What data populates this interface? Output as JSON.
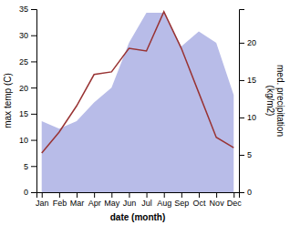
{
  "chart_data": {
    "type": "line",
    "categories": [
      "Jan",
      "Feb",
      "Mar",
      "Apr",
      "May",
      "Jun",
      "Jul",
      "Aug",
      "Sep",
      "Oct",
      "Nov",
      "Dec"
    ],
    "series": [
      {
        "type": "area",
        "axis": "y2",
        "color": "#b8bce8",
        "values": [
          9.5,
          8.5,
          9.5,
          12.0,
          14.0,
          20.0,
          24.0,
          24.0,
          19.5,
          21.5,
          20.0,
          13.0
        ]
      },
      {
        "type": "line",
        "color": "#993333",
        "values": [
          7.5,
          11.5,
          16.5,
          22.5,
          23.0,
          27.5,
          27.0,
          34.5,
          27.5,
          19.0,
          10.5,
          8.5
        ]
      }
    ],
    "xlabel": "date (month)",
    "ylabel": "max temp (C)",
    "y2label": "med. precipitation\n(kg/m2)",
    "ylim": [
      0,
      35
    ],
    "yticks": [
      0,
      5,
      10,
      15,
      20,
      25,
      30,
      35
    ],
    "y2lim": [
      0,
      24.5
    ],
    "y2ticks": [
      0,
      5,
      10,
      15,
      20
    ],
    "grid": false
  }
}
